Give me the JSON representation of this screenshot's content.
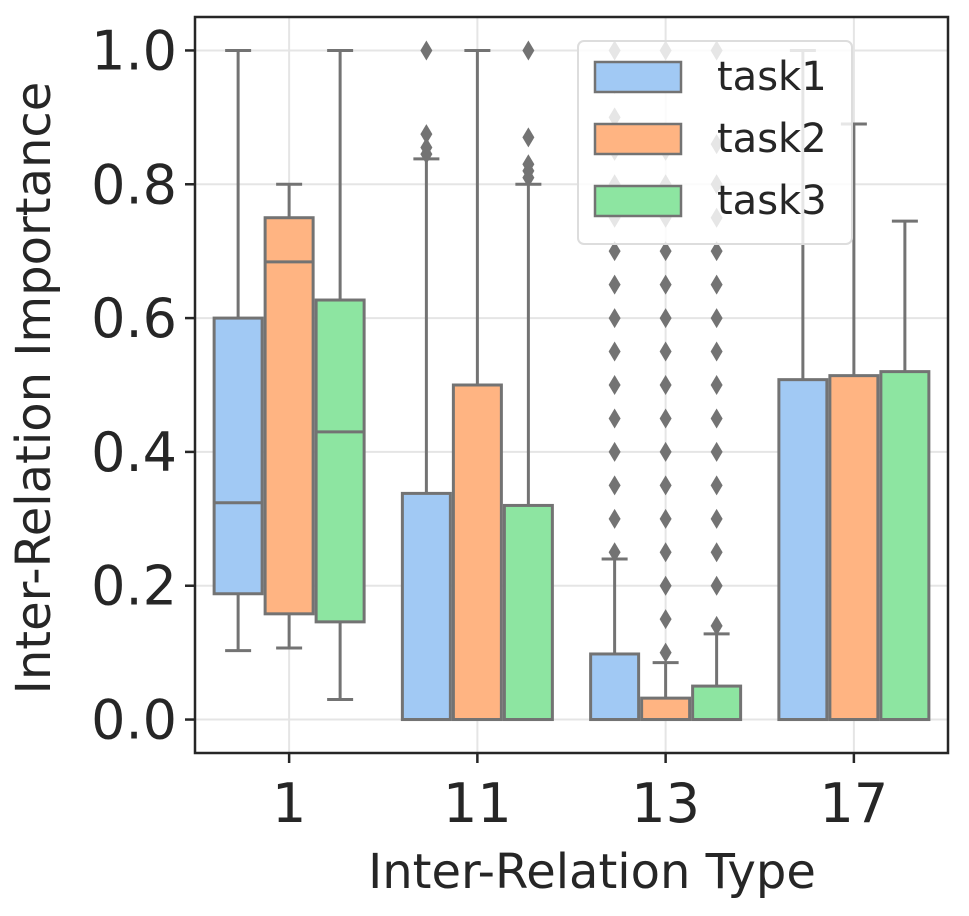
{
  "chart_data": {
    "type": "boxplot",
    "xlabel": "Inter-Relation Type",
    "ylabel": "Inter-Relation Importance",
    "categories": [
      "1",
      "11",
      "13",
      "17"
    ],
    "ylim": [
      -0.05,
      1.05
    ],
    "yticks": [
      0.0,
      0.2,
      0.4,
      0.6,
      0.8,
      1.0
    ],
    "ytick_labels": [
      "0.0",
      "0.2",
      "0.4",
      "0.6",
      "0.8",
      "1.0"
    ],
    "grid": true,
    "legend_position": "top-right",
    "series": [
      {
        "name": "task1",
        "color": "#a1c9f4",
        "boxes": [
          {
            "min": 0.103,
            "q1": 0.188,
            "median": 0.324,
            "q3": 0.6,
            "max": 1.0,
            "outliers": []
          },
          {
            "min": 0.0,
            "q1": 0.0,
            "median": 0.0,
            "q3": 0.338,
            "max": 0.838,
            "outliers": [
              0.845,
              0.855,
              0.875,
              1.0
            ]
          },
          {
            "min": 0.0,
            "q1": 0.0,
            "median": 0.0,
            "q3": 0.098,
            "max": 0.24,
            "outliers": [
              0.25,
              0.3,
              0.35,
              0.4,
              0.45,
              0.5,
              0.55,
              0.6,
              0.65,
              0.7,
              0.75,
              0.8,
              0.85,
              0.9,
              0.95,
              1.0
            ]
          },
          {
            "min": 0.0,
            "q1": 0.0,
            "median": 0.0,
            "q3": 0.508,
            "max": 1.0,
            "outliers": []
          }
        ]
      },
      {
        "name": "task2",
        "color": "#ffb482",
        "boxes": [
          {
            "min": 0.107,
            "q1": 0.158,
            "median": 0.684,
            "q3": 0.75,
            "max": 0.8,
            "outliers": []
          },
          {
            "min": 0.0,
            "q1": 0.0,
            "median": 0.0,
            "q3": 0.5,
            "max": 1.0,
            "outliers": []
          },
          {
            "min": 0.0,
            "q1": 0.0,
            "median": 0.0,
            "q3": 0.032,
            "max": 0.085,
            "outliers": [
              0.1,
              0.15,
              0.2,
              0.25,
              0.3,
              0.35,
              0.4,
              0.45,
              0.5,
              0.55,
              0.6,
              0.65,
              0.7,
              0.75,
              0.8,
              0.85,
              1.0
            ]
          },
          {
            "min": 0.0,
            "q1": 0.0,
            "median": 0.0,
            "q3": 0.514,
            "max": 0.89,
            "outliers": []
          }
        ]
      },
      {
        "name": "task3",
        "color": "#8de5a1",
        "boxes": [
          {
            "min": 0.03,
            "q1": 0.146,
            "median": 0.43,
            "q3": 0.627,
            "max": 1.0,
            "outliers": []
          },
          {
            "min": 0.0,
            "q1": 0.0,
            "median": 0.0,
            "q3": 0.32,
            "max": 0.8,
            "outliers": [
              0.81,
              0.82,
              0.83,
              0.87,
              1.0
            ]
          },
          {
            "min": 0.0,
            "q1": 0.0,
            "median": 0.0,
            "q3": 0.05,
            "max": 0.128,
            "outliers": [
              0.14,
              0.2,
              0.25,
              0.3,
              0.35,
              0.4,
              0.45,
              0.5,
              0.55,
              0.6,
              0.65,
              0.7,
              0.75,
              0.8,
              0.86,
              1.0
            ]
          },
          {
            "min": 0.0,
            "q1": 0.0,
            "median": 0.0,
            "q3": 0.52,
            "max": 0.745,
            "outliers": []
          }
        ]
      }
    ]
  }
}
